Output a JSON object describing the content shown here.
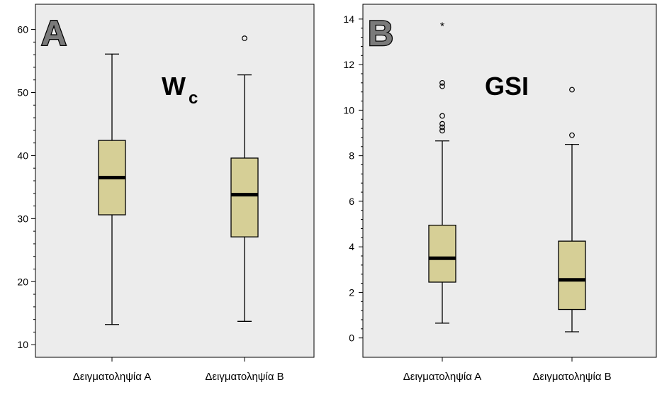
{
  "colors": {
    "plot_background": "#ececec",
    "box_fill": "#d6cf96",
    "median": "#000000",
    "whisker": "#000000"
  },
  "chart_data": [
    {
      "type": "box",
      "panel_label": "A",
      "title": "Wc",
      "title_main": "W",
      "title_sub": "c",
      "categories": [
        "Δειγματοληψία Α",
        "Δειγματοληψία Β"
      ],
      "ylim": [
        8,
        64
      ],
      "yticks": [
        10,
        20,
        30,
        40,
        50,
        60
      ],
      "grid": false,
      "boxes": [
        {
          "category": "Δειγματοληψία Α",
          "min": 13.2,
          "q1": 30.6,
          "median": 36.5,
          "q3": 42.4,
          "max": 56.1,
          "outliers": [],
          "extremes": []
        },
        {
          "category": "Δειγματοληψία Β",
          "min": 13.7,
          "q1": 27.1,
          "median": 33.8,
          "q3": 39.6,
          "max": 52.8,
          "outliers": [
            58.6
          ],
          "extremes": []
        }
      ]
    },
    {
      "type": "box",
      "panel_label": "B",
      "title": "GSI",
      "title_main": "GSI",
      "title_sub": "",
      "categories": [
        "Δειγματοληψία Α",
        "Δειγματοληψία Β"
      ],
      "ylim": [
        -0.85,
        14.65
      ],
      "yticks": [
        0,
        2,
        4,
        6,
        8,
        10,
        12,
        14
      ],
      "grid": false,
      "boxes": [
        {
          "category": "Δειγματοληψία Α",
          "min": 0.65,
          "q1": 2.45,
          "median": 3.5,
          "q3": 4.95,
          "max": 8.65,
          "outliers": [
            9.1,
            9.25,
            9.4,
            9.75,
            11.05,
            11.2
          ],
          "extremes": [
            13.7
          ]
        },
        {
          "category": "Δειγματοληψία Β",
          "min": 0.27,
          "q1": 1.25,
          "median": 2.55,
          "q3": 4.25,
          "max": 8.5,
          "outliers": [
            8.9,
            10.9
          ],
          "extremes": []
        }
      ]
    }
  ]
}
